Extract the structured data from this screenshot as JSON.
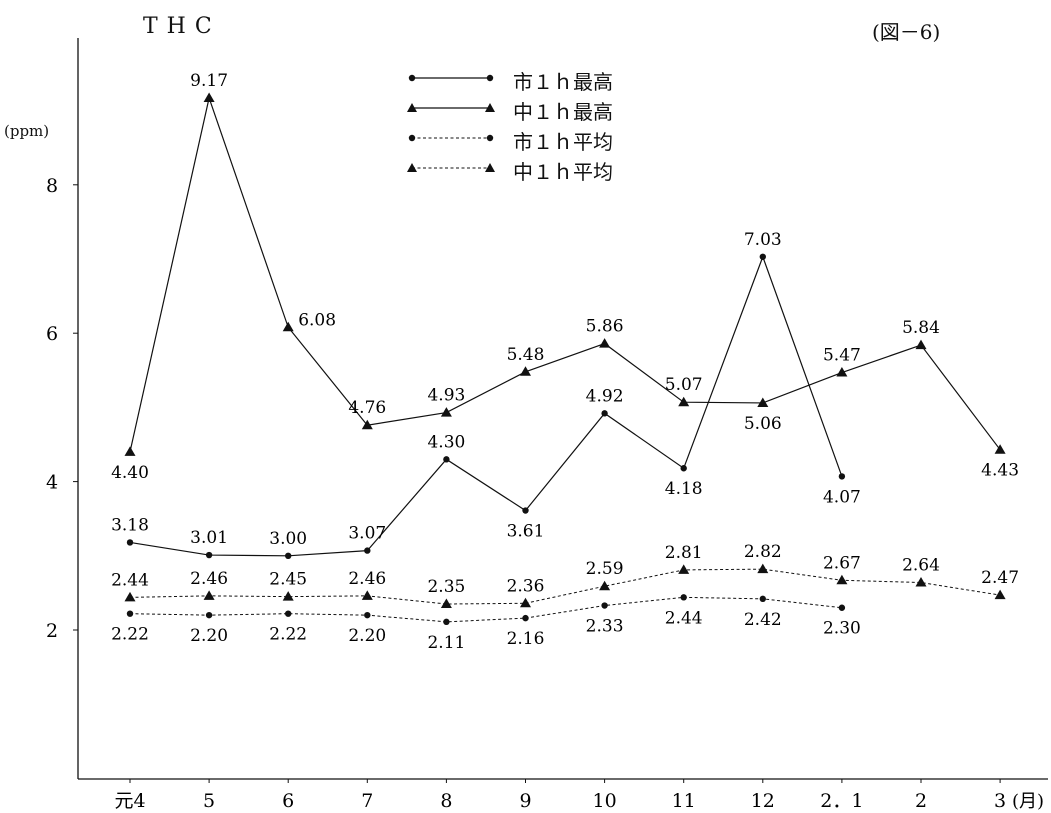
{
  "page": {
    "title": "THC",
    "figure_label": "(図－6)",
    "y_unit": "(ppm)"
  },
  "chart_data": {
    "type": "line",
    "title": "THC",
    "ylabel": "(ppm)",
    "xlabel": "",
    "x_unit": "(月)",
    "categories": [
      "元4",
      "5",
      "6",
      "7",
      "8",
      "9",
      "10",
      "11",
      "12",
      "2．1",
      "2",
      "3"
    ],
    "y_ticks": [
      "2",
      "4",
      "6",
      "8"
    ],
    "ylim": [
      0,
      10
    ],
    "grid": false,
    "legend_position": "top-center",
    "series": [
      {
        "name": "市１ｈ最高",
        "marker": "circle",
        "line": "solid",
        "values": [
          3.18,
          3.01,
          3.0,
          3.07,
          4.3,
          3.61,
          4.92,
          4.18,
          7.03,
          4.07,
          null,
          null
        ],
        "labels": [
          "3.18",
          "3.01",
          "3.00",
          "3.07",
          "4.30",
          "3.61",
          "4.92",
          "4.18",
          "7.03",
          "4.07",
          null,
          null
        ],
        "label_pos": [
          "above",
          "above",
          "above",
          "above",
          "above",
          "below",
          "above",
          "below",
          "above",
          "below",
          null,
          null
        ]
      },
      {
        "name": "中１ｈ最高",
        "marker": "triangle",
        "line": "solid",
        "values": [
          4.4,
          9.17,
          6.08,
          4.76,
          4.93,
          5.48,
          5.86,
          5.07,
          5.06,
          5.47,
          5.84,
          4.43
        ],
        "labels": [
          "4.40",
          "9.17",
          "6.08",
          "4.76",
          "4.93",
          "5.48",
          "5.86",
          "5.07",
          "5.06",
          "5.47",
          "5.84",
          "4.43"
        ],
        "label_pos": [
          "below",
          "above",
          "right",
          "above",
          "above",
          "above",
          "above",
          "above",
          "below",
          "above",
          "above",
          "below"
        ]
      },
      {
        "name": "市１ｈ平均",
        "marker": "circle",
        "line": "dashed",
        "values": [
          2.22,
          2.2,
          2.22,
          2.2,
          2.11,
          2.16,
          2.33,
          2.44,
          2.42,
          2.3,
          null,
          null
        ],
        "labels": [
          "2.22",
          "2.20",
          "2.22",
          "2.20",
          "2.11",
          "2.16",
          "2.33",
          "2.44",
          "2.42",
          "2.30",
          null,
          null
        ],
        "label_pos": [
          "below",
          "below",
          "below",
          "below",
          "below",
          "below",
          "below",
          "below",
          "below",
          "below",
          null,
          null
        ]
      },
      {
        "name": "中１ｈ平均",
        "marker": "triangle",
        "line": "dashed",
        "values": [
          2.44,
          2.46,
          2.45,
          2.46,
          2.35,
          2.36,
          2.59,
          2.81,
          2.82,
          2.67,
          2.64,
          2.47
        ],
        "labels": [
          "2.44",
          "2.46",
          "2.45",
          "2.46",
          "2.35",
          "2.36",
          "2.59",
          "2.81",
          "2.82",
          "2.67",
          "2.64",
          "2.47"
        ],
        "label_pos": [
          "above",
          "above",
          "above",
          "above",
          "above",
          "above",
          "above",
          "above",
          "above",
          "above",
          "above",
          "above"
        ]
      }
    ]
  }
}
